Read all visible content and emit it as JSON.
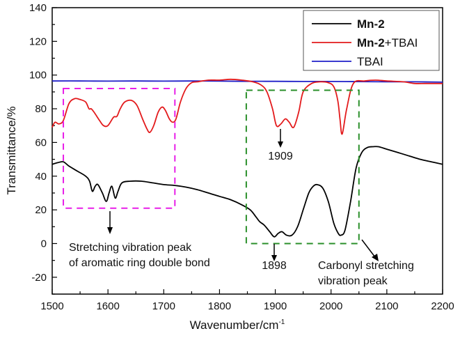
{
  "chart_data": {
    "type": "line",
    "title": "",
    "xlabel": "Wavenumber/cm",
    "xlabel_superscript": "-1",
    "ylabel": "Transmittance/%",
    "xlim": [
      1500,
      2200
    ],
    "ylim": [
      -30,
      140
    ],
    "xticks": [
      1500,
      1600,
      1700,
      1800,
      1900,
      2000,
      2100,
      2200
    ],
    "yticks": [
      -20,
      0,
      20,
      40,
      60,
      80,
      100,
      120,
      140
    ],
    "grid": false,
    "legend_position": "top-right",
    "legend": [
      {
        "bold": "Mn-2",
        "rest": "",
        "color": "#000000"
      },
      {
        "bold": "Mn-2",
        "rest": "+TBAI",
        "color": "#e31a1c"
      },
      {
        "bold": "",
        "rest": "TBAI",
        "color": "#1f1fc8"
      }
    ],
    "series": [
      {
        "name": "Mn-2",
        "color": "#000000",
        "x": [
          1500,
          1510,
          1520,
          1530,
          1545,
          1560,
          1567,
          1572,
          1577,
          1582,
          1590,
          1597,
          1602,
          1607,
          1613,
          1618,
          1625,
          1640,
          1660,
          1680,
          1700,
          1720,
          1740,
          1760,
          1780,
          1800,
          1820,
          1840,
          1855,
          1865,
          1872,
          1880,
          1890,
          1898,
          1905,
          1912,
          1920,
          1930,
          1940,
          1950,
          1960,
          1968,
          1975,
          1985,
          1995,
          2005,
          2013,
          2018,
          2025,
          2035,
          2045,
          2055,
          2065,
          2075,
          2085,
          2100,
          2120,
          2140,
          2160,
          2180,
          2200
        ],
        "y": [
          47,
          48,
          48.5,
          46,
          43,
          40,
          37,
          31,
          34,
          35,
          30,
          25,
          30,
          34,
          27,
          31,
          36,
          37,
          37,
          36,
          35,
          34.5,
          33.5,
          32,
          30,
          28,
          26,
          23,
          20,
          16,
          13,
          11,
          7,
          4,
          6,
          7,
          5,
          5,
          10,
          20,
          30,
          34,
          35,
          33,
          25,
          12,
          6,
          5,
          8,
          25,
          45,
          54,
          57,
          57.5,
          57.5,
          56,
          54,
          52,
          50,
          48.5,
          47
        ]
      },
      {
        "name": "Mn-2+TBAI",
        "color": "#e31a1c",
        "x": [
          1500,
          1505,
          1512,
          1520,
          1530,
          1540,
          1550,
          1560,
          1566,
          1570,
          1575,
          1585,
          1592,
          1600,
          1610,
          1616,
          1622,
          1630,
          1642,
          1652,
          1662,
          1670,
          1675,
          1682,
          1690,
          1697,
          1703,
          1710,
          1716,
          1722,
          1730,
          1740,
          1750,
          1760,
          1780,
          1800,
          1820,
          1840,
          1860,
          1875,
          1885,
          1895,
          1902,
          1910,
          1918,
          1925,
          1933,
          1942,
          1950,
          1965,
          1980,
          1995,
          2005,
          2012,
          2016,
          2020,
          2028,
          2040,
          2060,
          2080,
          2100,
          2130,
          2150,
          2170,
          2200
        ],
        "y": [
          69,
          72,
          71,
          73,
          83,
          86,
          85.5,
          84,
          80,
          80,
          78,
          73,
          70,
          70,
          75,
          75.5,
          80,
          84,
          85,
          82,
          74,
          68,
          66,
          70,
          78,
          81,
          79,
          74,
          72,
          74,
          84,
          92,
          95.5,
          96,
          97,
          97,
          97.5,
          97,
          96,
          94,
          90,
          80,
          70,
          71,
          74,
          72,
          69,
          78,
          90,
          95,
          96,
          95.5,
          93,
          85,
          74,
          65,
          80,
          95,
          96.5,
          97,
          96.5,
          96,
          95,
          95,
          95
        ]
      },
      {
        "name": "TBAI",
        "color": "#1f1fc8",
        "x": [
          1500,
          1550,
          1600,
          1650,
          1700,
          1750,
          1800,
          1850,
          1900,
          1950,
          2000,
          2050,
          2100,
          2150,
          2200
        ],
        "y": [
          96.5,
          96.5,
          96.4,
          96.5,
          96.4,
          96.5,
          96.4,
          96.3,
          96.3,
          96.2,
          96.2,
          96.1,
          96,
          96,
          95.8
        ]
      }
    ],
    "annotations": {
      "box_aromatic": {
        "x0": 1520,
        "x1": 1720,
        "y0": 21,
        "y1": 92,
        "color": "#e81ee8"
      },
      "box_carbonyl": {
        "x0": 1848,
        "x1": 2050,
        "y0": 0,
        "y1": 91,
        "color": "#2a8f2a"
      },
      "label_1909": "1909",
      "label_1898": "1898",
      "label_aromatic_line1": "Stretching vibration peak",
      "label_aromatic_line2": "of aromatic ring double bond",
      "label_carbonyl_line1": "Carbonyl stretching",
      "label_carbonyl_line2": "vibration peak"
    }
  }
}
